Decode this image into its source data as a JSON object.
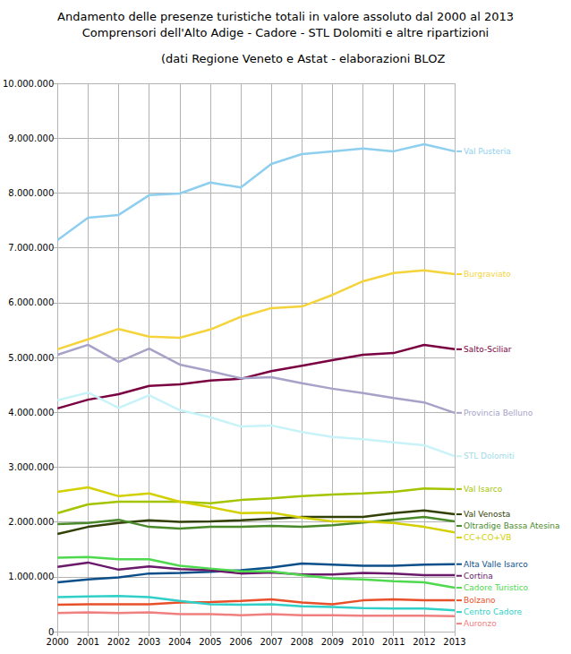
{
  "chart_data": {
    "type": "line",
    "title": "Andamento delle presenze turistiche totali in valore assoluto dal 2000 al 2013\nComprensori dell'Alto Adige - Cadore - STL Dolomiti e altre ripartizioni",
    "subtitle": "(dati Regione Veneto e Astat - elaborazioni BLOZ",
    "categories": [
      "2000",
      "2001",
      "2002",
      "2003",
      "2004",
      "2005",
      "2006",
      "2007",
      "2008",
      "2009",
      "2010",
      "2011",
      "2012",
      "2013"
    ],
    "ylim": [
      0,
      10000000
    ],
    "yticks": [
      0,
      {
        "value": 1000000,
        "label": "1.000.000"
      },
      {
        "value": 2000000,
        "label": "2.000.000"
      },
      {
        "value": 3000000,
        "label": "3.000.000"
      },
      {
        "value": 4000000,
        "label": "4.000.000"
      },
      {
        "value": 5000000,
        "label": "5.000.000"
      },
      {
        "value": 6000000,
        "label": "6.000.000"
      },
      {
        "value": 7000000,
        "label": "7.000.000"
      },
      {
        "value": 8000000,
        "label": "8.000.000"
      },
      {
        "value": 9000000,
        "label": "9.000.000"
      },
      {
        "value": 10000000,
        "label": "10.000.000"
      }
    ],
    "grid": true,
    "series": [
      {
        "name": "Val Pusteria",
        "color": "#8ecff0",
        "values": [
          7140000,
          7550000,
          7600000,
          7960000,
          7990000,
          8190000,
          8100000,
          8530000,
          8710000,
          8760000,
          8810000,
          8760000,
          8890000,
          8760000
        ]
      },
      {
        "name": "Burgraviato",
        "color": "#f5d33a",
        "values": [
          5150000,
          5330000,
          5520000,
          5380000,
          5360000,
          5510000,
          5740000,
          5900000,
          5930000,
          6140000,
          6390000,
          6540000,
          6590000,
          6520000
        ]
      },
      {
        "name": "Salto-Sciliar",
        "color": "#7b0041",
        "values": [
          4070000,
          4230000,
          4330000,
          4480000,
          4510000,
          4580000,
          4610000,
          4750000,
          4850000,
          4950000,
          5050000,
          5080000,
          5230000,
          5150000
        ]
      },
      {
        "name": "Provincia Belluno",
        "color": "#a6a2c8",
        "values": [
          5050000,
          5230000,
          4920000,
          5160000,
          4870000,
          4750000,
          4620000,
          4640000,
          4530000,
          4430000,
          4350000,
          4260000,
          4180000,
          3990000
        ]
      },
      {
        "name": "STL Dolomiti",
        "color": "#c8f3f8",
        "values": [
          4220000,
          4360000,
          4080000,
          4310000,
          4040000,
          3910000,
          3740000,
          3760000,
          3640000,
          3550000,
          3510000,
          3450000,
          3400000,
          3200000
        ]
      },
      {
        "name": "Val Isarco",
        "color": "#a5c400",
        "values": [
          2160000,
          2320000,
          2370000,
          2370000,
          2370000,
          2340000,
          2400000,
          2430000,
          2470000,
          2500000,
          2520000,
          2550000,
          2610000,
          2600000
        ]
      },
      {
        "name": "Val Venosta",
        "color": "#314004",
        "values": [
          1780000,
          1910000,
          1980000,
          2030000,
          2000000,
          2010000,
          2030000,
          2060000,
          2090000,
          2090000,
          2090000,
          2160000,
          2210000,
          2140000
        ]
      },
      {
        "name": "Oltradige Bassa Atesina",
        "color": "#4a8a2a",
        "values": [
          1960000,
          1980000,
          2040000,
          1910000,
          1880000,
          1910000,
          1910000,
          1930000,
          1910000,
          1940000,
          1990000,
          2040000,
          2090000,
          2010000
        ]
      },
      {
        "name": "CC+CO+VB",
        "color": "#d4d000",
        "values": [
          2550000,
          2630000,
          2470000,
          2520000,
          2370000,
          2270000,
          2160000,
          2170000,
          2080000,
          2010000,
          2010000,
          1980000,
          1910000,
          1810000
        ]
      },
      {
        "name": "Alta Valle Isarco",
        "color": "#0b4f8a",
        "values": [
          900000,
          950000,
          990000,
          1060000,
          1070000,
          1090000,
          1120000,
          1170000,
          1240000,
          1220000,
          1200000,
          1200000,
          1220000,
          1230000
        ]
      },
      {
        "name": "Cortina",
        "color": "#6b1a6b",
        "values": [
          1180000,
          1260000,
          1130000,
          1190000,
          1140000,
          1120000,
          1060000,
          1080000,
          1040000,
          1040000,
          1070000,
          1060000,
          1030000,
          1030000
        ]
      },
      {
        "name": "Cadore Turistico",
        "color": "#4ed94e",
        "values": [
          1350000,
          1360000,
          1320000,
          1320000,
          1200000,
          1150000,
          1100000,
          1100000,
          1030000,
          970000,
          950000,
          920000,
          900000,
          800000
        ]
      },
      {
        "name": "Bolzano",
        "color": "#e8502a",
        "values": [
          490000,
          500000,
          500000,
          500000,
          530000,
          540000,
          560000,
          590000,
          530000,
          500000,
          570000,
          590000,
          570000,
          570000
        ]
      },
      {
        "name": "Centro Cadore",
        "color": "#30d0c8",
        "values": [
          630000,
          640000,
          650000,
          630000,
          560000,
          500000,
          490000,
          500000,
          460000,
          450000,
          430000,
          420000,
          420000,
          390000
        ]
      },
      {
        "name": "Auronzo",
        "color": "#f08080",
        "values": [
          340000,
          350000,
          340000,
          350000,
          320000,
          320000,
          300000,
          320000,
          300000,
          300000,
          290000,
          290000,
          290000,
          280000
        ]
      }
    ]
  }
}
